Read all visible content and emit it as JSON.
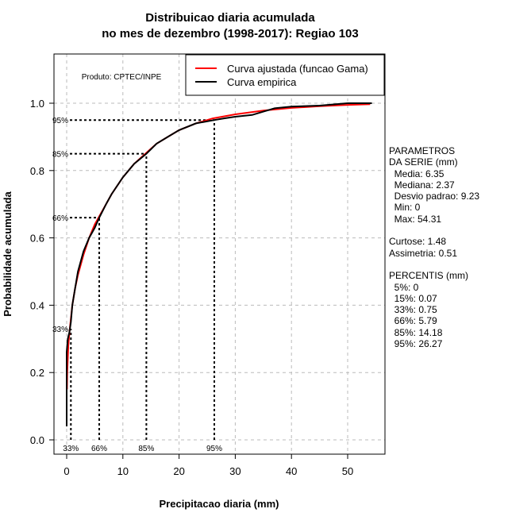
{
  "chart_data": {
    "type": "line",
    "title": [
      "Distribuicao diaria acumulada",
      "no mes de dezembro (1998-2017): Regiao 103"
    ],
    "xlabel": "Precipitacao diaria (mm)",
    "ylabel": "Probabilidade acumulada",
    "xlim": [
      -2,
      56.5
    ],
    "ylim": [
      -0.035,
      1.14
    ],
    "xticks": [
      0,
      10,
      20,
      30,
      40,
      50
    ],
    "yticks": [
      "0.0",
      "0.2",
      "0.4",
      "0.6",
      "0.8",
      "1.0"
    ],
    "grid": true,
    "product_label": "Produto: CPTEC/INPE",
    "legend": {
      "placement": "top-right",
      "entries": [
        {
          "label": "Curva ajustada (funcao Gama)",
          "color": "#ff0000"
        },
        {
          "label": "Curva empirica",
          "color": "#000000"
        }
      ]
    },
    "series": [
      {
        "name": "Curva ajustada (funcao Gama)",
        "color": "#ff0000",
        "x": [
          0.05,
          0.1,
          0.3,
          0.5,
          0.75,
          1,
          1.5,
          2,
          3,
          4,
          5,
          6,
          7,
          8,
          10,
          12,
          14,
          16,
          18,
          20,
          23,
          26,
          30,
          35,
          40,
          45,
          50,
          54
        ],
        "y": [
          0.15,
          0.2,
          0.28,
          0.32,
          0.36,
          0.4,
          0.45,
          0.49,
          0.55,
          0.6,
          0.64,
          0.67,
          0.7,
          0.73,
          0.78,
          0.82,
          0.85,
          0.88,
          0.9,
          0.92,
          0.94,
          0.955,
          0.967,
          0.978,
          0.986,
          0.991,
          0.995,
          0.997
        ]
      },
      {
        "name": "Curva empirica",
        "color": "#000000",
        "x": [
          0,
          0,
          0.2,
          0.5,
          0.75,
          1,
          1.5,
          2,
          3,
          4,
          5,
          5.79,
          7,
          8,
          10,
          12,
          14.18,
          16,
          18,
          20,
          23,
          26.27,
          28,
          30,
          33,
          35,
          37,
          40,
          45,
          50,
          54.31
        ],
        "y": [
          0.04,
          0.26,
          0.3,
          0.32,
          0.35,
          0.4,
          0.45,
          0.5,
          0.56,
          0.6,
          0.63,
          0.66,
          0.7,
          0.73,
          0.78,
          0.82,
          0.85,
          0.88,
          0.9,
          0.92,
          0.94,
          0.95,
          0.955,
          0.96,
          0.965,
          0.975,
          0.985,
          0.99,
          0.993,
          1.0,
          1.0
        ]
      }
    ],
    "percentiles": [
      {
        "label": "33%",
        "x": 0.75,
        "y": 0.33,
        "hline": false
      },
      {
        "label": "66%",
        "x": 5.79,
        "y": 0.66,
        "hline": true
      },
      {
        "label": "85%",
        "x": 14.18,
        "y": 0.85,
        "hline": true
      },
      {
        "label": "95%",
        "x": 26.27,
        "y": 0.95,
        "hline": true
      }
    ]
  },
  "side_panel": {
    "lines": [
      "PARAMETROS",
      "DA SERIE (mm)",
      "  Media: 6.35",
      "  Mediana: 2.37",
      "  Desvio padrao: 9.23",
      "  Min: 0",
      "  Max: 54.31",
      "",
      "Curtose: 1.48",
      "Assimetria: 0.51",
      "",
      "PERCENTIS (mm)",
      "  5%: 0",
      "  15%: 0.07",
      "  33%: 0.75",
      "  66%: 5.79",
      "  85%: 14.18",
      "  95%: 26.27"
    ]
  }
}
